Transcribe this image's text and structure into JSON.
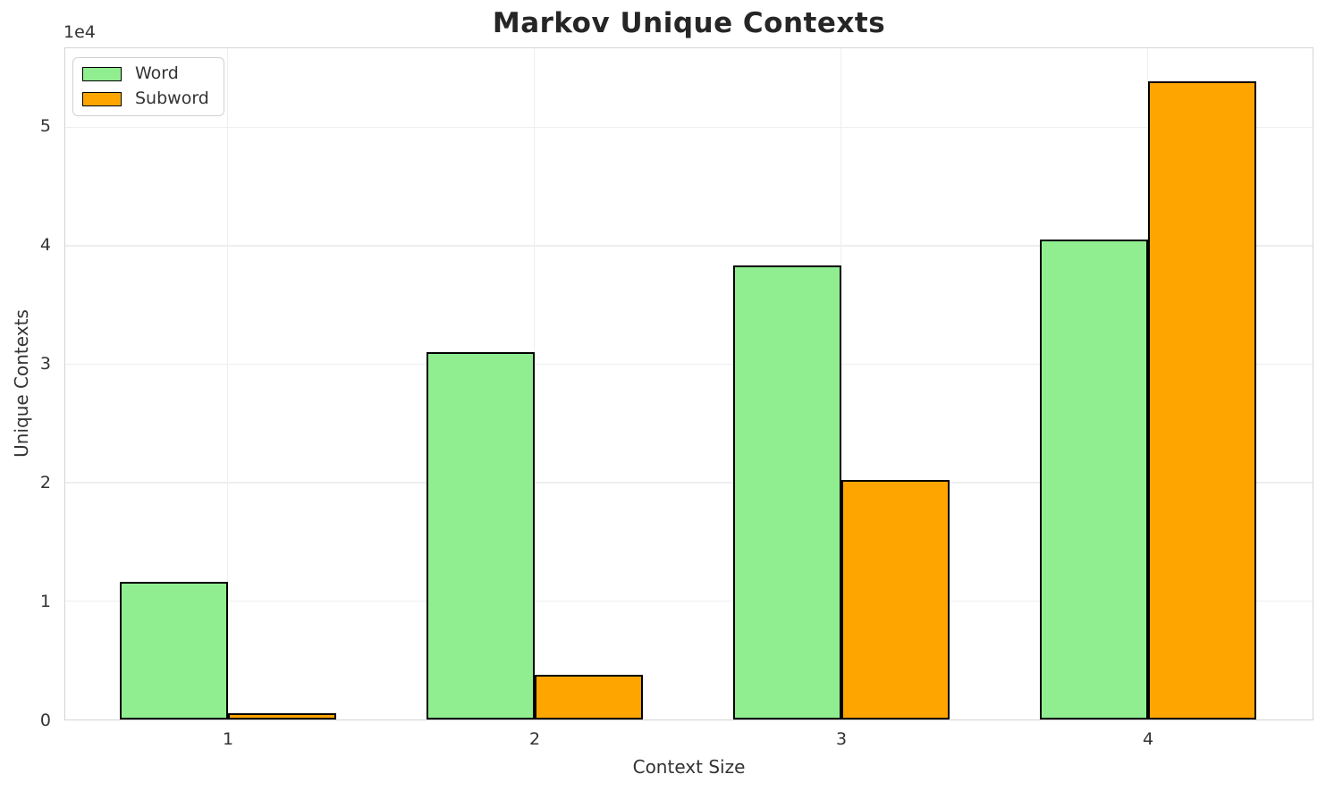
{
  "chart_data": {
    "type": "bar",
    "title": "Markov Unique Contexts",
    "xlabel": "Context Size",
    "ylabel": "Unique Contexts",
    "y_scale_label": "1e4",
    "categories": [
      "1",
      "2",
      "3",
      "4"
    ],
    "series": [
      {
        "name": "Word",
        "color": "#90EE90",
        "values": [
          11600,
          31000,
          38300,
          40500
        ]
      },
      {
        "name": "Subword",
        "color": "#FFA500",
        "values": [
          500,
          3800,
          20200,
          53900
        ]
      }
    ],
    "ylim": [
      0,
      56600
    ],
    "yticks": [
      0,
      10000,
      20000,
      30000,
      40000,
      50000
    ],
    "ytick_labels": [
      "0",
      "1",
      "2",
      "3",
      "4",
      "5"
    ],
    "grid": true,
    "legend_position": "upper left",
    "colors": {
      "bar_edge": "#000000",
      "gridline": "#eeeeee",
      "spine": "#d4d4d4",
      "tick_text": "#333333",
      "title_text": "#262626"
    }
  }
}
